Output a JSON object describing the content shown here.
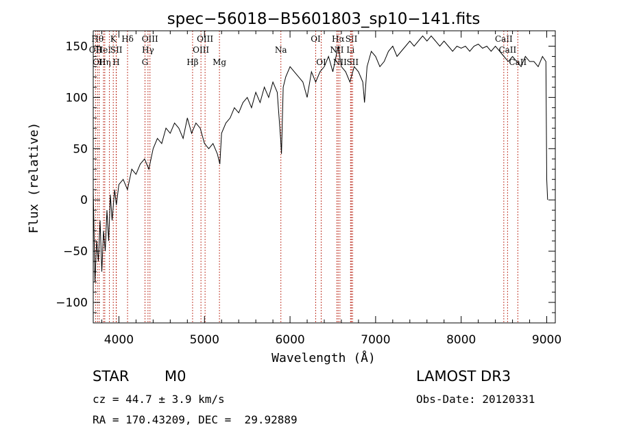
{
  "chart_data": {
    "type": "line",
    "title": "spec−56018−B5601803_sp10−141.fits",
    "xlabel": "Wavelength (Å)",
    "ylabel": "Flux (relative)",
    "xlim": [
      3700,
      9100
    ],
    "ylim": [
      -120,
      165
    ],
    "xticks": [
      4000,
      5000,
      6000,
      7000,
      8000,
      9000
    ],
    "yticks": [
      -100,
      -50,
      0,
      50,
      100,
      150
    ],
    "ytick_labels": [
      "−100",
      "−50",
      "0",
      "50",
      "100",
      "150"
    ],
    "series": [
      {
        "name": "spectrum",
        "x": [
          3700,
          3720,
          3740,
          3760,
          3780,
          3800,
          3820,
          3840,
          3860,
          3880,
          3900,
          3920,
          3950,
          3970,
          4000,
          4050,
          4100,
          4150,
          4200,
          4250,
          4300,
          4350,
          4400,
          4450,
          4500,
          4550,
          4600,
          4650,
          4700,
          4750,
          4800,
          4850,
          4900,
          4950,
          5000,
          5050,
          5100,
          5150,
          5180,
          5200,
          5250,
          5300,
          5350,
          5400,
          5450,
          5500,
          5550,
          5600,
          5650,
          5700,
          5750,
          5800,
          5850,
          5890,
          5900,
          5920,
          5950,
          6000,
          6050,
          6100,
          6150,
          6200,
          6250,
          6300,
          6350,
          6400,
          6450,
          6500,
          6550,
          6563,
          6580,
          6600,
          6650,
          6700,
          6750,
          6800,
          6850,
          6870,
          6900,
          6950,
          7000,
          7050,
          7100,
          7150,
          7200,
          7250,
          7300,
          7350,
          7400,
          7450,
          7500,
          7550,
          7600,
          7650,
          7700,
          7750,
          7800,
          7850,
          7900,
          7950,
          8000,
          8050,
          8100,
          8150,
          8200,
          8250,
          8300,
          8350,
          8400,
          8450,
          8500,
          8550,
          8600,
          8650,
          8700,
          8750,
          8800,
          8850,
          8900,
          8950,
          8990,
          9000,
          9010
        ],
        "y": [
          10,
          -80,
          -40,
          -60,
          -20,
          -70,
          -30,
          -50,
          -10,
          -40,
          5,
          -20,
          10,
          -5,
          15,
          20,
          10,
          30,
          25,
          35,
          40,
          30,
          50,
          60,
          55,
          70,
          65,
          75,
          70,
          60,
          80,
          65,
          75,
          70,
          55,
          50,
          55,
          45,
          35,
          65,
          75,
          80,
          90,
          85,
          95,
          100,
          90,
          105,
          95,
          110,
          100,
          115,
          105,
          60,
          45,
          110,
          120,
          130,
          125,
          120,
          115,
          100,
          125,
          115,
          125,
          130,
          140,
          125,
          145,
          150,
          140,
          130,
          125,
          115,
          130,
          125,
          115,
          95,
          130,
          145,
          140,
          130,
          135,
          145,
          150,
          140,
          145,
          150,
          155,
          150,
          155,
          160,
          155,
          160,
          155,
          150,
          155,
          150,
          145,
          150,
          148,
          150,
          145,
          150,
          152,
          148,
          150,
          145,
          150,
          145,
          140,
          135,
          140,
          135,
          130,
          140,
          135,
          135,
          130,
          140,
          135,
          20,
          0
        ]
      }
    ],
    "lines": [
      {
        "wavelength": 3727,
        "label": "OII",
        "row": 2
      },
      {
        "wavelength": 3750,
        "label": "Hθ",
        "row": 1
      },
      {
        "wavelength": 3770,
        "label": "OII",
        "row": 3
      },
      {
        "wavelength": 3820,
        "label": "HeI",
        "row": 2
      },
      {
        "wavelength": 3835,
        "label": "Hη",
        "row": 3
      },
      {
        "wavelength": 3889,
        "label": "",
        "row": 0
      },
      {
        "wavelength": 3934,
        "label": "K",
        "row": 1
      },
      {
        "wavelength": 3968,
        "label": "H",
        "row": 3
      },
      {
        "wavelength": 3970,
        "label": "SII",
        "row": 2
      },
      {
        "wavelength": 4101,
        "label": "Hδ",
        "row": 1
      },
      {
        "wavelength": 4305,
        "label": "G",
        "row": 3
      },
      {
        "wavelength": 4340,
        "label": "Hγ",
        "row": 2
      },
      {
        "wavelength": 4363,
        "label": "OIII",
        "row": 1
      },
      {
        "wavelength": 4861,
        "label": "Hβ",
        "row": 3
      },
      {
        "wavelength": 4959,
        "label": "OIII",
        "row": 2
      },
      {
        "wavelength": 5007,
        "label": "OIII",
        "row": 1
      },
      {
        "wavelength": 5175,
        "label": "Mg",
        "row": 3
      },
      {
        "wavelength": 5893,
        "label": "Na",
        "row": 2
      },
      {
        "wavelength": 6300,
        "label": "OI",
        "row": 1
      },
      {
        "wavelength": 6364,
        "label": "OI",
        "row": 3
      },
      {
        "wavelength": 6548,
        "label": "NII",
        "row": 2
      },
      {
        "wavelength": 6563,
        "label": "Hα",
        "row": 1
      },
      {
        "wavelength": 6583,
        "label": "NII",
        "row": 3
      },
      {
        "wavelength": 6707,
        "label": "Li",
        "row": 2
      },
      {
        "wavelength": 6717,
        "label": "SII",
        "row": 1
      },
      {
        "wavelength": 6731,
        "label": "SII",
        "row": 3
      },
      {
        "wavelength": 8498,
        "label": "CaII",
        "row": 1
      },
      {
        "wavelength": 8542,
        "label": "CaII",
        "row": 2
      },
      {
        "wavelength": 8662,
        "label": "CaII",
        "row": 3
      }
    ]
  },
  "info": {
    "object_class": "STAR",
    "subclass": "M0",
    "survey": "LAMOST DR3",
    "cz": "cz = 44.7 ± 3.9 km/s",
    "obs_date": "Obs-Date: 20120331",
    "coords": "RA = 170.43209, DEC =  29.92889"
  }
}
